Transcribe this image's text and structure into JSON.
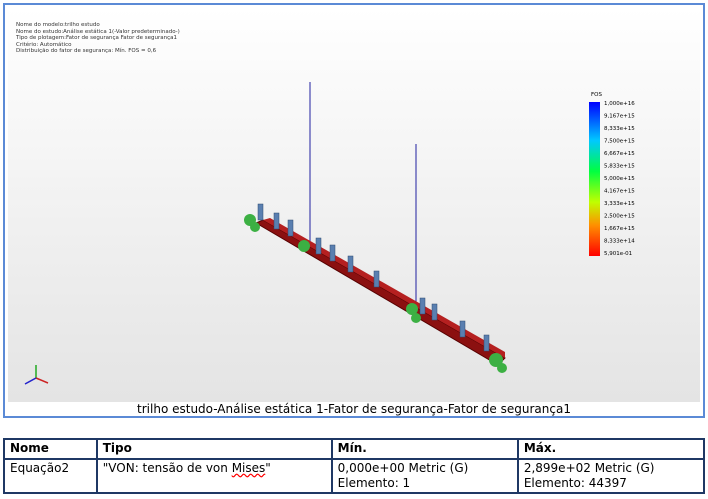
{
  "plot_info": [
    "Nome do modelo:trilho estudo",
    "Nome do estudo:Análise estática 1(-Valor predeterminado-)",
    "Tipo de plotagem:Fator de segurança Fator de segurança1",
    "Critério: Automático",
    "Distribuição do fator de segurança: Mín. FOS = 0,6"
  ],
  "legend": {
    "title": "FOS",
    "labels": [
      "1,000e+16",
      "9,167e+15",
      "8,333e+15",
      "7,500e+15",
      "6,667e+15",
      "5,833e+15",
      "5,000e+15",
      "4,167e+15",
      "3,333e+15",
      "2,500e+15",
      "1,667e+15",
      "8,333e+14",
      "5,901e-01"
    ]
  },
  "caption": "trilho estudo-Análise estática 1-Fator de segurança-Fator de segurança1",
  "table": {
    "header": [
      "Nome",
      "Tipo",
      "Mín.",
      "Máx."
    ],
    "rows": [
      [
        [
          "Equação2"
        ],
        [
          "\"VON: tensão de von Mises\""
        ],
        [
          "0,000e+00 Metric (G)",
          "Elemento: 1"
        ],
        [
          "2,899e+02 Metric (G)",
          "Elemento: 44397"
        ]
      ]
    ]
  }
}
